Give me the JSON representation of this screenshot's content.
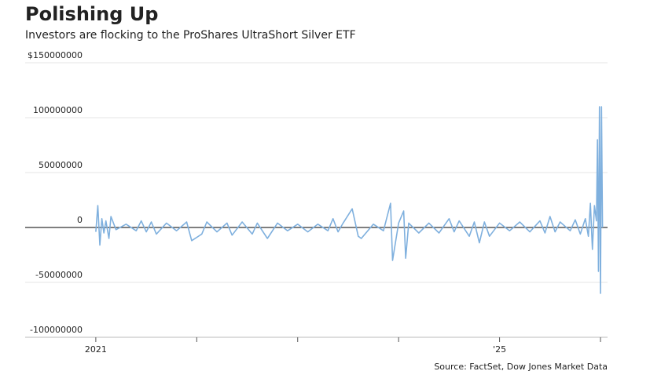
{
  "chart_data": {
    "type": "line",
    "title": "Polishing Up",
    "subtitle": "Investors are flocking to the ProShares UltraShort Silver ETF",
    "source": "Source: FactSet, Dow Jones Market Data",
    "color": "#7fb0de",
    "x": [
      2021.0,
      2021.02,
      2021.04,
      2021.06,
      2021.08,
      2021.1,
      2021.13,
      2021.15,
      2021.2,
      2021.3,
      2021.4,
      2021.45,
      2021.5,
      2021.55,
      2021.6,
      2021.7,
      2021.8,
      2021.9,
      2021.95,
      2022.05,
      2022.1,
      2022.2,
      2022.3,
      2022.35,
      2022.45,
      2022.55,
      2022.6,
      2022.7,
      2022.8,
      2022.9,
      2023.0,
      2023.1,
      2023.2,
      2023.3,
      2023.35,
      2023.4,
      2023.45,
      2023.54,
      2023.6,
      2023.63,
      2023.75,
      2023.85,
      2023.92,
      2023.94,
      2024.0,
      2024.05,
      2024.07,
      2024.1,
      2024.2,
      2024.3,
      2024.4,
      2024.5,
      2024.55,
      2024.6,
      2024.7,
      2024.75,
      2024.8,
      2024.85,
      2024.9,
      2025.0,
      2025.1,
      2025.2,
      2025.3,
      2025.4,
      2025.45,
      2025.5,
      2025.55,
      2025.6,
      2025.7,
      2025.75,
      2025.8,
      2025.85,
      2025.88,
      2025.9,
      2025.92,
      2025.94,
      2025.96,
      2025.97,
      2025.98,
      2025.99,
      2026.0,
      2026.01,
      2026.02
    ],
    "values": [
      -4000000,
      20000000,
      -16000000,
      8000000,
      -5000000,
      6000000,
      -10000000,
      10000000,
      -2000000,
      3000000,
      -3000000,
      6000000,
      -4000000,
      5000000,
      -6000000,
      4000000,
      -3000000,
      5000000,
      -12000000,
      -6000000,
      5000000,
      -4000000,
      4000000,
      -7000000,
      5000000,
      -6000000,
      4000000,
      -10000000,
      4000000,
      -3000000,
      3000000,
      -4000000,
      3000000,
      -3000000,
      8000000,
      -4000000,
      4000000,
      17000000,
      -8000000,
      -10000000,
      3000000,
      -3000000,
      22000000,
      -30000000,
      4000000,
      15000000,
      -28000000,
      4000000,
      -5000000,
      4000000,
      -5000000,
      8000000,
      -4000000,
      6000000,
      -8000000,
      5000000,
      -14000000,
      5000000,
      -8000000,
      4000000,
      -3000000,
      5000000,
      -4000000,
      6000000,
      -5000000,
      10000000,
      -4000000,
      5000000,
      -3000000,
      7000000,
      -6000000,
      8000000,
      -8000000,
      22000000,
      -20000000,
      20000000,
      6000000,
      80000000,
      -40000000,
      110000000,
      -60000000,
      110000000,
      0
    ],
    "xlim": [
      2020.3,
      2026.07
    ],
    "xticks": [
      2021,
      {
        "value": 2022,
        "label": null
      },
      {
        "value": 2023,
        "label": null
      },
      {
        "value": 2024,
        "label": null
      },
      {
        "value": 2025,
        "label": "'25"
      },
      {
        "value": 2026,
        "label": null
      }
    ],
    "ylim": [
      -100000000,
      150000000
    ],
    "yticks": [
      {
        "value": 150000000,
        "label": "$150000000"
      },
      100000000,
      50000000,
      0,
      -50000000,
      -100000000
    ],
    "grid": true
  }
}
